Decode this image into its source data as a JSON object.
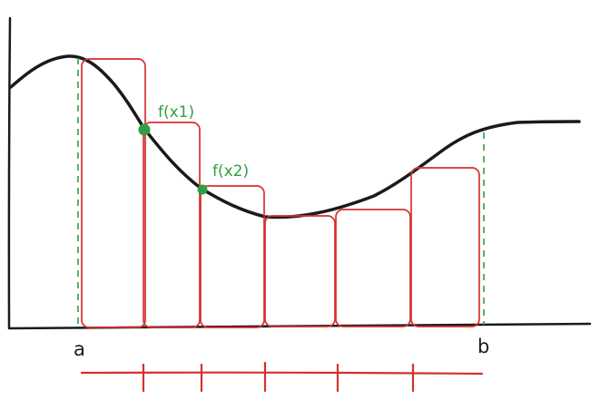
{
  "diagram": {
    "labels": {
      "point_1": "f(x1)",
      "point_2": "f(x2)",
      "bound_left": "a",
      "bound_right": "b"
    },
    "colors": {
      "axis": "#1a1a1a",
      "curve": "#1a1a1a",
      "rectangle": "#d62f2f",
      "bound_line": "#2f9e44",
      "point": "#2f9e44",
      "point_label": "#2f9e44",
      "bound_label": "#1a1a1a"
    }
  }
}
